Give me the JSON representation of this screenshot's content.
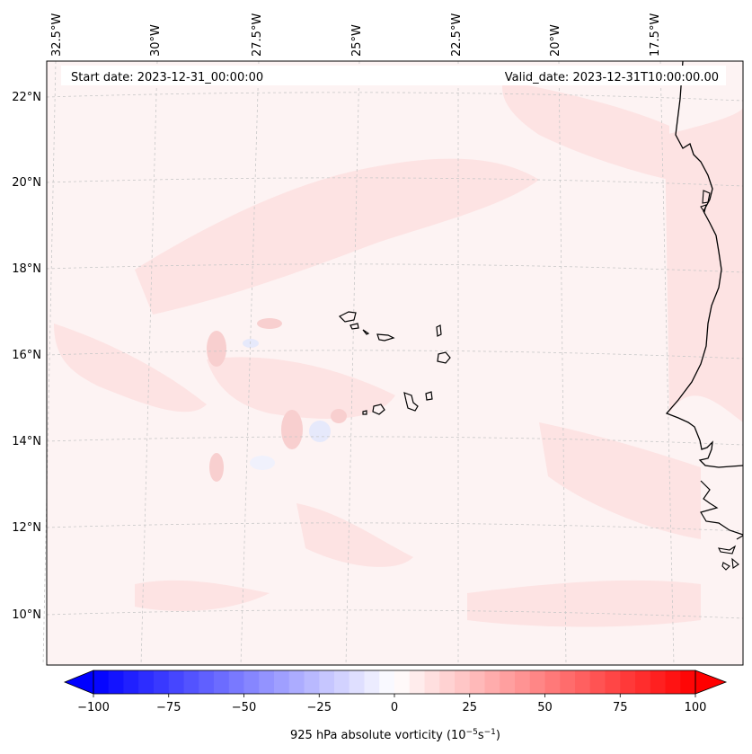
{
  "header": {
    "start_date": "Start date: 2023-12-31_00:00:00",
    "valid_date": "Valid_date: 2023-12-31T10:00:00.00"
  },
  "lon_labels": [
    "32.5°W",
    "30°W",
    "27.5°W",
    "25°W",
    "22.5°W",
    "20°W",
    "17.5°W"
  ],
  "lat_labels": [
    "22°N",
    "20°N",
    "18°N",
    "16°N",
    "14°N",
    "12°N",
    "10°N"
  ],
  "colorbar": {
    "ticks": [
      "−100",
      "−75",
      "−50",
      "−25",
      "0",
      "25",
      "50",
      "75",
      "100"
    ],
    "label_main": "925 hPa absolute vorticity (10",
    "label_exp1": "−5",
    "label_mid": "s",
    "label_exp2": "−1",
    "label_end": ")",
    "vmin": -100,
    "vmax": 100,
    "min_color": "#0000ff",
    "mid_color": "#ffffff",
    "max_color": "#ff0000"
  },
  "colors": {
    "background_field": "#fdf3f3",
    "positive_light": "#fde2e2",
    "positive_mid": "#f9cccc",
    "negative_light": "#e8ebff",
    "coastline": "#000000",
    "gridline": "#c8c8c8"
  }
}
